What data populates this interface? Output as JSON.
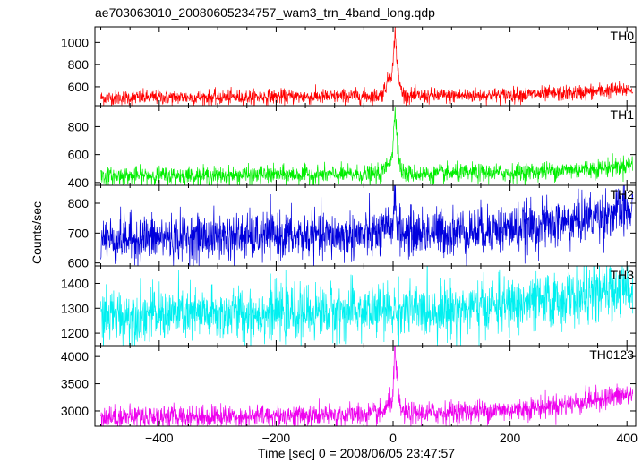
{
  "chart_data": {
    "type": "line",
    "title": "ae703063010_20080605234757_wam3_trn_4band_long.qdp",
    "xlabel": "Time [sec] 0 = 2008/06/05 23:47:57",
    "ylabel": "Counts/sec",
    "xlim": [
      -510,
      415
    ],
    "xticks": [
      -400,
      -200,
      0,
      200,
      400
    ],
    "panels": [
      {
        "name": "TH0",
        "color": "#ff0000",
        "ylim": [
          430,
          1140
        ],
        "yticks": [
          600,
          800,
          1000
        ],
        "series": {
          "x": [
            -500,
            -400,
            -300,
            -200,
            -100,
            -20,
            -5,
            0,
            3,
            6,
            10,
            15,
            20,
            40,
            100,
            200,
            300,
            350,
            410
          ],
          "y": [
            500,
            505,
            505,
            510,
            510,
            520,
            700,
            780,
            1120,
            900,
            650,
            560,
            520,
            515,
            520,
            525,
            540,
            560,
            580
          ]
        }
      },
      {
        "name": "TH1",
        "color": "#00ee00",
        "ylim": [
          380,
          950
        ],
        "yticks": [
          400,
          600,
          800
        ],
        "series": {
          "x": [
            -500,
            -400,
            -300,
            -200,
            -100,
            -20,
            -5,
            0,
            3,
            6,
            10,
            15,
            20,
            40,
            100,
            200,
            300,
            350,
            410
          ],
          "y": [
            445,
            450,
            450,
            455,
            455,
            460,
            560,
            650,
            930,
            800,
            560,
            480,
            465,
            460,
            465,
            470,
            490,
            500,
            530
          ]
        }
      },
      {
        "name": "TH2",
        "color": "#0000dd",
        "ylim": [
          590,
          860
        ],
        "yticks": [
          600,
          700,
          800
        ],
        "series": {
          "x": [
            -500,
            -400,
            -300,
            -200,
            -100,
            -20,
            -5,
            0,
            3,
            6,
            10,
            20,
            100,
            200,
            300,
            350,
            410
          ],
          "y": [
            680,
            685,
            685,
            690,
            690,
            695,
            720,
            740,
            850,
            770,
            705,
            700,
            705,
            715,
            735,
            760,
            775
          ]
        }
      },
      {
        "name": "TH3",
        "color": "#00f0f0",
        "ylim": [
          1150,
          1470
        ],
        "yticks": [
          1200,
          1300,
          1400
        ],
        "series": {
          "x": [
            -500,
            -400,
            -300,
            -200,
            -100,
            0,
            100,
            200,
            300,
            350,
            410
          ],
          "y": [
            1270,
            1275,
            1275,
            1280,
            1285,
            1290,
            1295,
            1310,
            1340,
            1360,
            1380
          ]
        }
      },
      {
        "name": "TH0123",
        "color": "#ee00ee",
        "ylim": [
          2720,
          4200
        ],
        "yticks": [
          3000,
          3500,
          4000
        ],
        "series": {
          "x": [
            -500,
            -400,
            -300,
            -200,
            -100,
            -20,
            -5,
            0,
            3,
            6,
            10,
            15,
            20,
            40,
            100,
            200,
            300,
            350,
            410
          ],
          "y": [
            2890,
            2900,
            2900,
            2910,
            2915,
            2950,
            3150,
            3300,
            4150,
            3700,
            3150,
            3000,
            2960,
            2950,
            2980,
            3020,
            3120,
            3220,
            3300
          ]
        }
      }
    ]
  }
}
